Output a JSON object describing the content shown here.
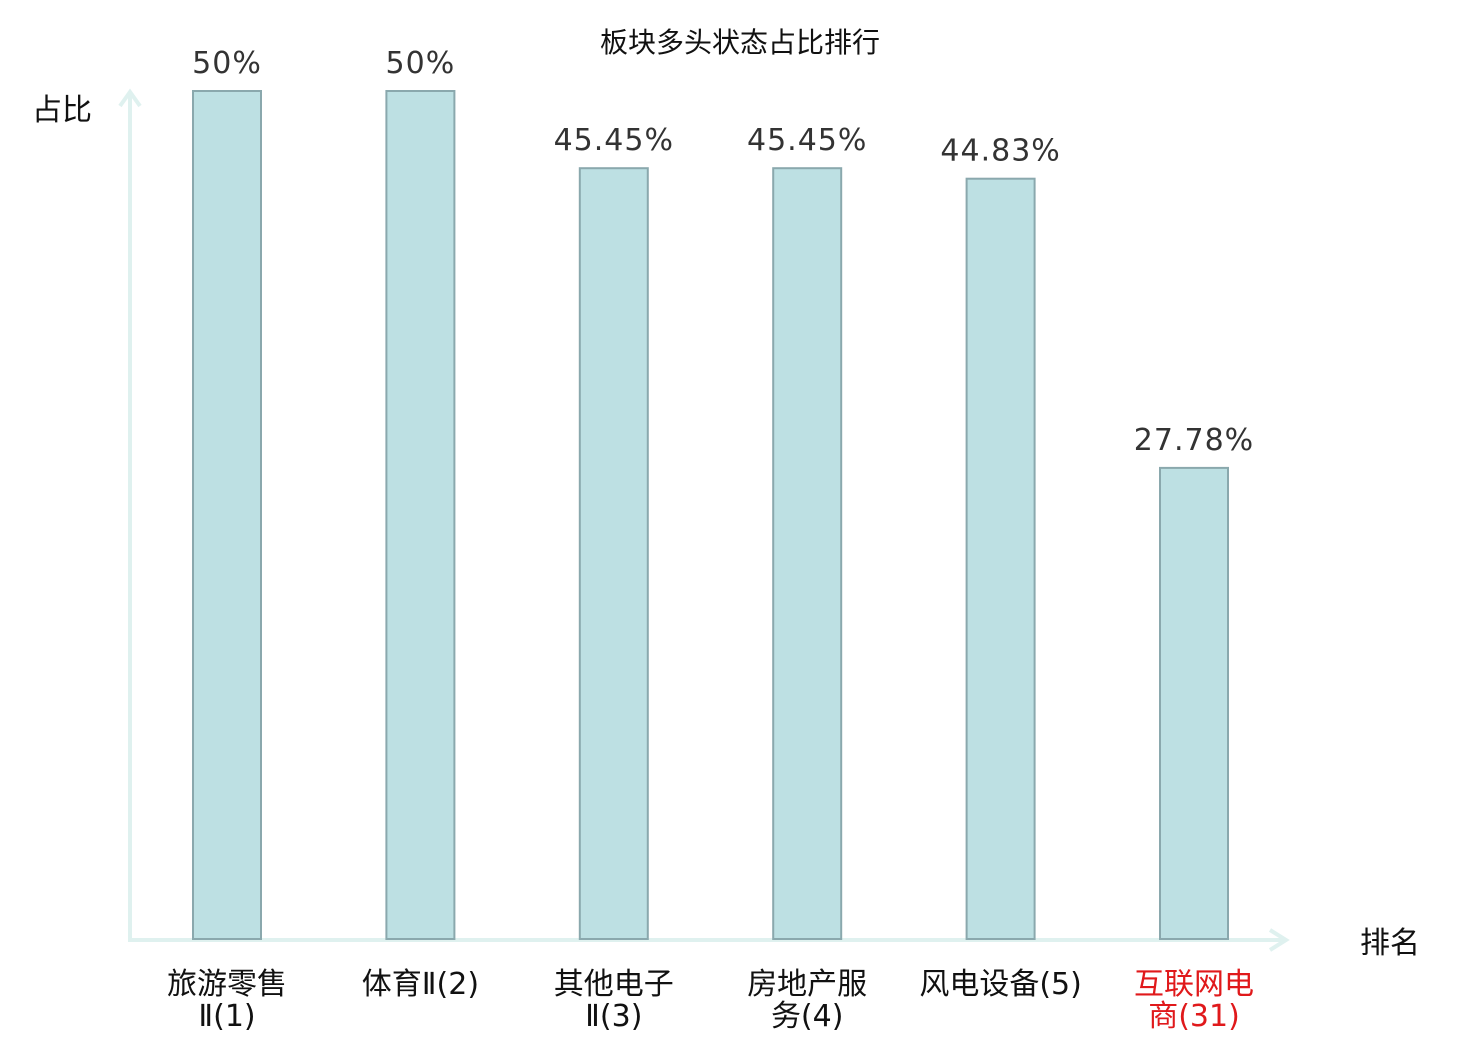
{
  "chart_data": {
    "type": "bar",
    "title": "板块多头状态占比排行",
    "ylabel": "占比",
    "xlabel": "排名",
    "categories": [
      [
        "旅游零售",
        "Ⅱ(1)"
      ],
      [
        "体育Ⅱ(2)"
      ],
      [
        "其他电子",
        "Ⅱ(3)"
      ],
      [
        "房地产服",
        "务(4)"
      ],
      [
        "风电设备(5)"
      ],
      [
        "互联网电",
        "商(31)"
      ]
    ],
    "values": [
      50,
      50,
      45.45,
      45.45,
      44.83,
      27.78
    ],
    "value_labels": [
      "50%",
      "50%",
      "45.45%",
      "45.45%",
      "44.83%",
      "27.78%"
    ],
    "highlight_index": 5,
    "ylim": [
      0,
      50
    ],
    "grid": false,
    "legend": "none",
    "colors": {
      "bar_fill": "#bde0e3",
      "bar_stroke": "#8aa8ad",
      "axis": "#dff1ef",
      "label": "#111111",
      "label_highlight": "#e0191b",
      "value_label": "#333333"
    }
  }
}
